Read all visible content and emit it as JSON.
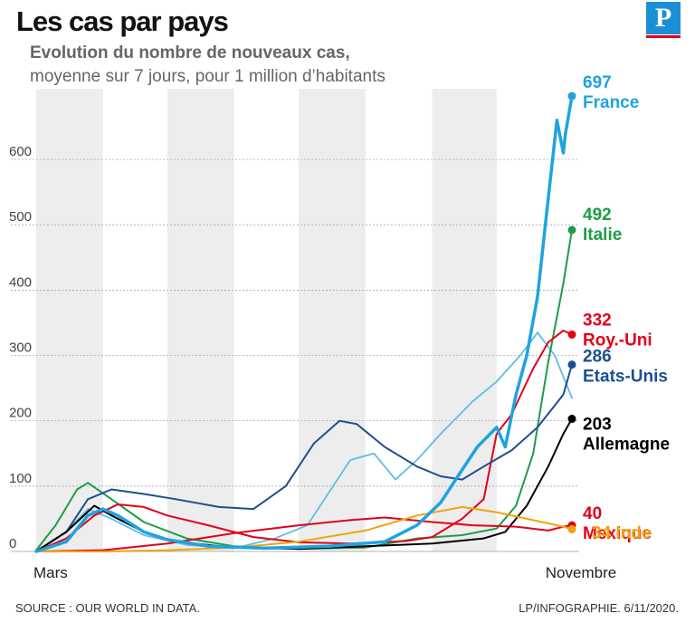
{
  "header": {
    "title": "Les cas par pays",
    "subtitle_line1": "Evolution du nombre de nouveaux cas,",
    "subtitle_line2": "moyenne sur 7 jours, pour 1 million d’habitants",
    "logo": "P"
  },
  "footer": {
    "source": "SOURCE : OUR WORLD IN DATA.",
    "credit": "LP/INFOGRAPHIE.  6/11/2020."
  },
  "chart_data": {
    "type": "line",
    "title": "Les cas par pays",
    "subtitle": "Evolution du nombre de nouveaux cas, moyenne sur 7 jours, pour 1 million d’habitants",
    "x_labels": [
      "Mars",
      "Novembre"
    ],
    "x_range": [
      "2020-03-01",
      "2020-11-05"
    ],
    "ylim": [
      0,
      650
    ],
    "yticks": [
      0,
      100,
      200,
      300,
      400,
      500,
      600
    ],
    "grid": true,
    "shaded_months": [
      "2020-03",
      "2020-05",
      "2020-07",
      "2020-09"
    ],
    "series": [
      {
        "name": "France",
        "end_value": 697,
        "color": "#1fa3e0",
        "emphasis": true,
        "points": [
          [
            "2020-03-01",
            0
          ],
          [
            "2020-03-15",
            15
          ],
          [
            "2020-03-25",
            55
          ],
          [
            "2020-04-01",
            65
          ],
          [
            "2020-04-08",
            55
          ],
          [
            "2020-04-20",
            30
          ],
          [
            "2020-05-01",
            18
          ],
          [
            "2020-05-20",
            8
          ],
          [
            "2020-06-15",
            5
          ],
          [
            "2020-07-15",
            8
          ],
          [
            "2020-08-10",
            15
          ],
          [
            "2020-08-25",
            40
          ],
          [
            "2020-09-05",
            75
          ],
          [
            "2020-09-12",
            110
          ],
          [
            "2020-09-22",
            160
          ],
          [
            "2020-10-01",
            190
          ],
          [
            "2020-10-05",
            160
          ],
          [
            "2020-10-10",
            240
          ],
          [
            "2020-10-15",
            300
          ],
          [
            "2020-10-20",
            390
          ],
          [
            "2020-10-25",
            540
          ],
          [
            "2020-10-29",
            660
          ],
          [
            "2020-11-01",
            610
          ],
          [
            "2020-11-02",
            640
          ],
          [
            "2020-11-05",
            697
          ]
        ]
      },
      {
        "name": "Italie",
        "end_value": 492,
        "color": "#1e9c4a",
        "points": [
          [
            "2020-03-01",
            2
          ],
          [
            "2020-03-10",
            40
          ],
          [
            "2020-03-20",
            95
          ],
          [
            "2020-03-25",
            105
          ],
          [
            "2020-04-05",
            80
          ],
          [
            "2020-04-20",
            45
          ],
          [
            "2020-05-10",
            20
          ],
          [
            "2020-06-01",
            8
          ],
          [
            "2020-07-01",
            4
          ],
          [
            "2020-08-01",
            6
          ],
          [
            "2020-08-25",
            20
          ],
          [
            "2020-09-15",
            25
          ],
          [
            "2020-10-01",
            35
          ],
          [
            "2020-10-10",
            70
          ],
          [
            "2020-10-18",
            150
          ],
          [
            "2020-10-25",
            290
          ],
          [
            "2020-11-01",
            410
          ],
          [
            "2020-11-05",
            492
          ]
        ]
      },
      {
        "name": "Roy.-Uni",
        "end_value": 332,
        "color": "#e2001a",
        "points": [
          [
            "2020-03-01",
            0
          ],
          [
            "2020-03-15",
            20
          ],
          [
            "2020-03-28",
            55
          ],
          [
            "2020-04-08",
            72
          ],
          [
            "2020-04-20",
            68
          ],
          [
            "2020-05-01",
            55
          ],
          [
            "2020-05-20",
            40
          ],
          [
            "2020-06-10",
            22
          ],
          [
            "2020-07-01",
            14
          ],
          [
            "2020-07-25",
            12
          ],
          [
            "2020-08-20",
            16
          ],
          [
            "2020-09-01",
            22
          ],
          [
            "2020-09-15",
            50
          ],
          [
            "2020-09-25",
            80
          ],
          [
            "2020-10-01",
            180
          ],
          [
            "2020-10-08",
            210
          ],
          [
            "2020-10-18",
            280
          ],
          [
            "2020-10-25",
            320
          ],
          [
            "2020-11-01",
            338
          ],
          [
            "2020-11-05",
            332
          ]
        ]
      },
      {
        "name": "Etats-Unis",
        "end_value": 286,
        "color": "#1d4f91",
        "points": [
          [
            "2020-03-01",
            0
          ],
          [
            "2020-03-15",
            30
          ],
          [
            "2020-03-25",
            80
          ],
          [
            "2020-04-05",
            95
          ],
          [
            "2020-04-20",
            88
          ],
          [
            "2020-05-05",
            80
          ],
          [
            "2020-05-25",
            68
          ],
          [
            "2020-06-10",
            65
          ],
          [
            "2020-06-25",
            100
          ],
          [
            "2020-07-08",
            165
          ],
          [
            "2020-07-20",
            200
          ],
          [
            "2020-07-28",
            195
          ],
          [
            "2020-08-10",
            160
          ],
          [
            "2020-08-25",
            130
          ],
          [
            "2020-09-05",
            115
          ],
          [
            "2020-09-15",
            110
          ],
          [
            "2020-09-25",
            130
          ],
          [
            "2020-10-08",
            155
          ],
          [
            "2020-10-20",
            190
          ],
          [
            "2020-11-01",
            240
          ],
          [
            "2020-11-05",
            286
          ]
        ]
      },
      {
        "name": "Allemagne",
        "end_value": 203,
        "color": "#000000",
        "points": [
          [
            "2020-03-01",
            0
          ],
          [
            "2020-03-15",
            30
          ],
          [
            "2020-03-28",
            70
          ],
          [
            "2020-04-05",
            55
          ],
          [
            "2020-04-20",
            30
          ],
          [
            "2020-05-05",
            15
          ],
          [
            "2020-06-01",
            6
          ],
          [
            "2020-07-01",
            4
          ],
          [
            "2020-08-01",
            8
          ],
          [
            "2020-09-01",
            12
          ],
          [
            "2020-09-25",
            20
          ],
          [
            "2020-10-05",
            30
          ],
          [
            "2020-10-15",
            70
          ],
          [
            "2020-10-25",
            130
          ],
          [
            "2020-11-01",
            180
          ],
          [
            "2020-11-05",
            203
          ]
        ]
      },
      {
        "name": "Mexique",
        "end_value": 40,
        "color": "#e2001a",
        "points": [
          [
            "2020-03-01",
            0
          ],
          [
            "2020-04-01",
            2
          ],
          [
            "2020-05-01",
            12
          ],
          [
            "2020-06-01",
            28
          ],
          [
            "2020-07-01",
            40
          ],
          [
            "2020-07-25",
            48
          ],
          [
            "2020-08-10",
            52
          ],
          [
            "2020-09-01",
            45
          ],
          [
            "2020-09-20",
            40
          ],
          [
            "2020-10-10",
            38
          ],
          [
            "2020-10-25",
            32
          ],
          [
            "2020-11-01",
            38
          ],
          [
            "2020-11-05",
            40
          ]
        ]
      },
      {
        "name": "Inde",
        "end_value": 34,
        "color": "#f2a20c",
        "points": [
          [
            "2020-03-01",
            0
          ],
          [
            "2020-04-01",
            0
          ],
          [
            "2020-05-01",
            2
          ],
          [
            "2020-06-01",
            6
          ],
          [
            "2020-07-01",
            15
          ],
          [
            "2020-08-01",
            32
          ],
          [
            "2020-08-25",
            55
          ],
          [
            "2020-09-15",
            68
          ],
          [
            "2020-10-01",
            60
          ],
          [
            "2020-10-15",
            50
          ],
          [
            "2020-11-01",
            38
          ],
          [
            "2020-11-05",
            34
          ]
        ]
      },
      {
        "color": "#5fbde8",
        "emphasis": false,
        "points": [
          [
            "2020-03-01",
            0
          ],
          [
            "2020-03-15",
            30
          ],
          [
            "2020-03-25",
            65
          ],
          [
            "2020-04-05",
            50
          ],
          [
            "2020-04-20",
            25
          ],
          [
            "2020-05-10",
            10
          ],
          [
            "2020-06-01",
            5
          ],
          [
            "2020-06-20",
            20
          ],
          [
            "2020-07-05",
            40
          ],
          [
            "2020-07-15",
            90
          ],
          [
            "2020-07-25",
            140
          ],
          [
            "2020-08-05",
            150
          ],
          [
            "2020-08-15",
            110
          ],
          [
            "2020-08-25",
            140
          ],
          [
            "2020-09-05",
            180
          ],
          [
            "2020-09-20",
            230
          ],
          [
            "2020-10-01",
            260
          ],
          [
            "2020-10-12",
            300
          ],
          [
            "2020-10-20",
            335
          ],
          [
            "2020-10-28",
            300
          ],
          [
            "2020-11-05",
            235
          ]
        ]
      }
    ]
  }
}
